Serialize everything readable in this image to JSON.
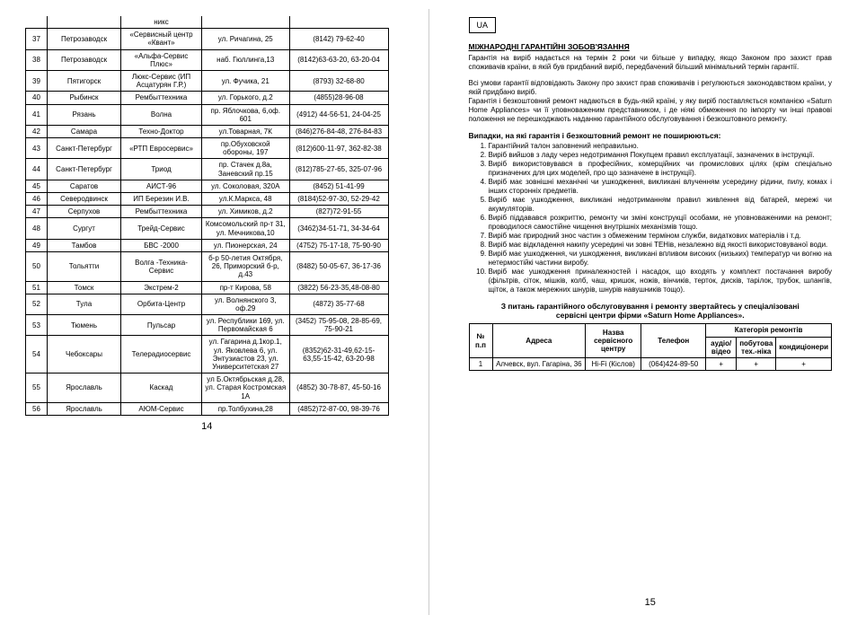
{
  "left": {
    "pageNum": "14",
    "topRow": {
      "num": "",
      "city": "",
      "name": "никс",
      "addr": "",
      "phone": ""
    },
    "rows": [
      {
        "num": "37",
        "city": "Петрозаводск",
        "name": "«Сервисный центр «Квант»",
        "addr": "ул. Ричагина, 25",
        "phone": "(8142) 79-62-40"
      },
      {
        "num": "38",
        "city": "Петрозаводск",
        "name": "«Альфа-Сервис Плюс»",
        "addr": "наб. Гюллинга,13",
        "phone": "(8142)63-63-20, 63-20-04"
      },
      {
        "num": "39",
        "city": "Пятигорск",
        "name": "Люкс-Сервис (ИП Асцатурян Г.Р.)",
        "addr": "ул. Фучика, 21",
        "phone": "(8793) 32-68-80"
      },
      {
        "num": "40",
        "city": "Рыбинск",
        "name": "Рембыттехника",
        "addr": "ул. Горького, д.2",
        "phone": "(4855)28-96-08"
      },
      {
        "num": "41",
        "city": "Рязань",
        "name": "Волна",
        "addr": "пр. Яблочкова, 6,оф. 601",
        "phone": "(4912) 44-56-51, 24-04-25"
      },
      {
        "num": "42",
        "city": "Самара",
        "name": "Техно-Доктор",
        "addr": "ул.Товарная, 7К",
        "phone": "(846)276-84-48, 276-84-83"
      },
      {
        "num": "43",
        "city": "Санкт-Петербург",
        "name": "«РТП Евросервис»",
        "addr": "пр.Обуховской обороны, 197",
        "phone": "(812)600-11-97, 362-82-38"
      },
      {
        "num": "44",
        "city": "Санкт-Петербург",
        "name": "Триод",
        "addr": "пр. Стачек д.8а, Заневский пр.15",
        "phone": "(812)785-27-65, 325-07-96"
      },
      {
        "num": "45",
        "city": "Саратов",
        "name": "АИСТ-96",
        "addr": "ул. Соколовая, 320А",
        "phone": "(8452) 51-41-99"
      },
      {
        "num": "46",
        "city": "Северодвинск",
        "name": "ИП Березин И.В.",
        "addr": "ул.К.Маркса, 48",
        "phone": "(8184)52-97-30, 52-29-42"
      },
      {
        "num": "47",
        "city": "Серпухов",
        "name": "Рембыттехника",
        "addr": "ул. Химиков, д.2",
        "phone": "(827)72-91-55"
      },
      {
        "num": "48",
        "city": "Сургут",
        "name": "Трейд-Сервис",
        "addr": "Комсомольский пр-т 31, ул. Мечникова,10",
        "phone": "(3462)34-51-71, 34-34-64"
      },
      {
        "num": "49",
        "city": "Тамбов",
        "name": "БВС -2000",
        "addr": "ул. Пионерская, 24",
        "phone": "(4752) 75-17-18, 75-90-90"
      },
      {
        "num": "50",
        "city": "Тольятти",
        "name": "Волга -Техника-Сервис",
        "addr": "б-р 50-летия Октября, 26, Приморский б-р, д.43",
        "phone": "(8482) 50-05-67, 36-17-36"
      },
      {
        "num": "51",
        "city": "Томск",
        "name": "Экстрем-2",
        "addr": "пр-т Кирова, 58",
        "phone": "(3822) 56-23-35,48-08-80"
      },
      {
        "num": "52",
        "city": "Тула",
        "name": "Орбита-Центр",
        "addr": "ул. Волнянского 3, оф.29",
        "phone": "(4872) 35-77-68"
      },
      {
        "num": "53",
        "city": "Тюмень",
        "name": "Пульсар",
        "addr": "ул. Республики 169, ул. Первомайская 6",
        "phone": "(3452) 75-95-08, 28-85-69, 75-90-21"
      },
      {
        "num": "54",
        "city": "Чебоксары",
        "name": "Телерадиосервис",
        "addr": "ул. Гагарина д.1кор.1, ул. Яковлева 6, ул. Энтузиастов 23, ул. Университетская 27",
        "phone": "(8352)62-31-49,62-15-63,55-15-42, 63-20-98"
      },
      {
        "num": "55",
        "city": "Ярославль",
        "name": "Каскад",
        "addr": "ул Б.Октябрьская д.28, ул. Старая Костромская 1А",
        "phone": "(4852) 30-78-87, 45-50-16"
      },
      {
        "num": "56",
        "city": "Ярославль",
        "name": "АЮМ-Сервис",
        "addr": "пр.Толбухина,28",
        "phone": "(4852)72-87-00, 98-39-76"
      }
    ]
  },
  "right": {
    "pageNum": "15",
    "uaLabel": "UA",
    "heading": "МІЖНАРОДНІ ГАРАНТІЙНІ ЗОБОВ'ЯЗАННЯ",
    "para1": "Гарантія на виріб надається на термін 2 роки чи більше у випадку, якщо Законом про захист прав споживачів країни, в якій був придбаний виріб, передбачений більший мінімальний термін гарантії.",
    "para2": "Всі умови гарантії відповідають Закону про захист прав споживачів і регулюються законодавством країни, у якій придбано виріб.\nГарантія і безкоштовний ремонт надаються в будь-якій країні, у яку виріб поставляється компанією «Saturn Home Appliances» чи її уповноваженим представником, і де ніякі обмеження по імпорту чи інші правові положення не перешкоджають наданню гарантійного обслуговування і безкоштовного ремонту.",
    "casesHeading": "Випадки, на які гарантія і безкоштовний ремонт не поширюються:",
    "cases": [
      "Гарантійний талон заповнений неправильно.",
      "Виріб вийшов з ладу через недотримання Покупцем правил експлуатації, зазначених в інструкції.",
      "Виріб використовувався в професійних, комерційних чи промислових цілях (крім спеціально призначених для цих моделей, про що зазначене в інструкції).",
      "Виріб має зовнішні механічні чи ушкодження, викликані влученням усередину рідини, пилу, комах і інших сторонніх предметів.",
      "Виріб має ушкодження, викликані недотриманням правил живлення від батарей, мережі чи акумуляторів.",
      "Виріб піддавався розкриттю, ремонту чи зміні конструкції особами, не уповноваженими на ремонт; проводилося самостійне чищення внутрішніх механізмів тощо.",
      "Виріб має природний знос частин з обмеженим терміном служби, видаткових матеріалів і т.д.",
      "Виріб має відкладення накипу усередині чи зовні ТЕНів, незалежно від якості використовуваної води.",
      "Виріб має ушкодження, чи ушкодження, викликані впливом високих (низьких) температур чи вогню на нетермостійкі частини виробу.",
      "Виріб має ушкодження приналежностей і насадок, що входять у комплект постачання виробу (фільтрів, сіток, мішків, колб, чаш, кришок, ножів, вінчиків, терток, дисків, тарілок, трубок, шлангів, щіток, а також мережних шнурів, шнурів навушників тощо)."
    ],
    "contactNote1": "З питань гарантійного обслуговування і ремонту звертайтесь у спеціалізовані",
    "contactNote2": "сервісні центри фірми «Saturn Home Appliances».",
    "tableHead": {
      "col1": "№ п.п",
      "col2": "Адреса",
      "col3": "Назва сервісного центру",
      "col4": "Телефон",
      "col5": "Категорія ремонтів",
      "sub1": "аудіо/ відео",
      "sub2": "побутова тех.-ніка",
      "sub3": "кондиціонери"
    },
    "tableRow": {
      "num": "1",
      "addr": "Алчевск, вул. Гагаріна, 36",
      "name": "Hi-Fi (Кіслов)",
      "phone": "(064)424-89-50",
      "c1": "+",
      "c2": "+",
      "c3": "+"
    }
  }
}
